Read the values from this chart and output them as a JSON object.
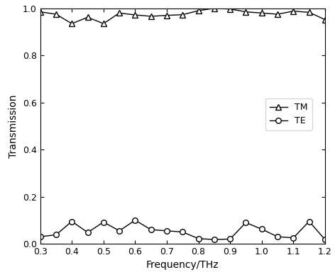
{
  "freq_TM": [
    0.3,
    0.35,
    0.4,
    0.45,
    0.5,
    0.55,
    0.6,
    0.65,
    0.7,
    0.75,
    0.8,
    0.85,
    0.9,
    0.95,
    1.0,
    1.05,
    1.1,
    1.15,
    1.2
  ],
  "TM": [
    0.985,
    0.975,
    0.935,
    0.962,
    0.935,
    0.98,
    0.972,
    0.966,
    0.97,
    0.973,
    0.99,
    1.0,
    0.997,
    0.985,
    0.98,
    0.975,
    0.988,
    0.983,
    0.952
  ],
  "freq_TE": [
    0.3,
    0.35,
    0.4,
    0.45,
    0.5,
    0.55,
    0.6,
    0.65,
    0.7,
    0.75,
    0.8,
    0.85,
    0.9,
    0.95,
    1.0,
    1.05,
    1.1,
    1.15,
    1.2
  ],
  "TE": [
    0.03,
    0.038,
    0.095,
    0.048,
    0.092,
    0.055,
    0.1,
    0.06,
    0.055,
    0.05,
    0.022,
    0.018,
    0.02,
    0.09,
    0.062,
    0.03,
    0.025,
    0.095,
    0.018
  ],
  "xlabel": "Frequency/THz",
  "ylabel": "Transmission",
  "xlim": [
    0.3,
    1.2
  ],
  "ylim": [
    0.0,
    1.0
  ],
  "xticks": [
    0.3,
    0.4,
    0.5,
    0.6,
    0.7,
    0.8,
    0.9,
    1.0,
    1.1,
    1.2
  ],
  "yticks": [
    0.0,
    0.2,
    0.4,
    0.6,
    0.8,
    1.0
  ],
  "line_color": "#000000",
  "legend_TM": "TM",
  "legend_TE": "TE",
  "figsize": [
    4.72,
    3.91
  ],
  "dpi": 100
}
